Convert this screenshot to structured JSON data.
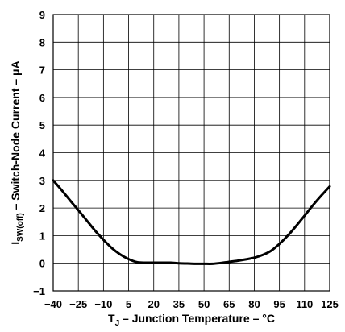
{
  "chart_data": {
    "type": "line",
    "xlabel_main": "T",
    "xlabel_sub": "J",
    "xlabel_rest": " – Junction Temperature – °C",
    "ylabel_main": "I",
    "ylabel_sub": "SW(off)",
    "ylabel_rest": " – Switch-Node Current – μA",
    "xlim": [
      -40,
      125
    ],
    "ylim": [
      -1,
      9
    ],
    "xticks": [
      -40,
      -25,
      -10,
      5,
      20,
      35,
      50,
      65,
      80,
      95,
      110,
      125
    ],
    "xtick_labels": [
      "−40",
      "−25",
      "−10",
      "5",
      "20",
      "35",
      "50",
      "65",
      "80",
      "95",
      "110",
      "125"
    ],
    "yticks": [
      -1,
      0,
      1,
      2,
      3,
      4,
      5,
      6,
      7,
      8,
      9
    ],
    "ytick_labels": [
      "−1",
      "0",
      "1",
      "2",
      "3",
      "4",
      "5",
      "6",
      "7",
      "8",
      "9"
    ],
    "grid": true,
    "series": [
      {
        "color": "#000000",
        "x": [
          -40,
          -35,
          -30,
          -25,
          -20,
          -15,
          -10,
          -5,
          0,
          5,
          10,
          15,
          20,
          25,
          30,
          35,
          40,
          45,
          50,
          55,
          60,
          65,
          70,
          75,
          80,
          85,
          90,
          95,
          100,
          105,
          110,
          115,
          120,
          125
        ],
        "y": [
          3.0,
          2.65,
          2.28,
          1.92,
          1.55,
          1.18,
          0.85,
          0.55,
          0.32,
          0.15,
          0.04,
          0.02,
          0.02,
          0.02,
          0.02,
          0.0,
          -0.01,
          -0.02,
          -0.02,
          -0.02,
          0.01,
          0.05,
          0.09,
          0.14,
          0.2,
          0.3,
          0.45,
          0.7,
          1.0,
          1.35,
          1.72,
          2.1,
          2.45,
          2.78
        ]
      }
    ]
  }
}
